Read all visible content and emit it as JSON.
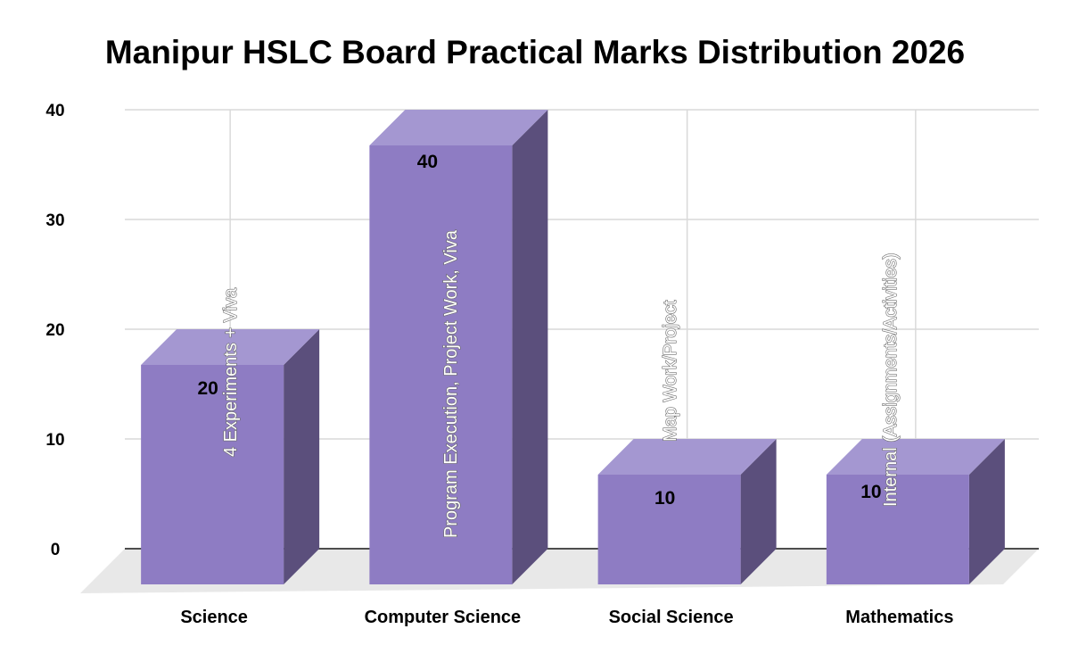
{
  "chart_data": {
    "type": "bar",
    "title": "Manipur HSLC Board Practical Marks Distribution 2026",
    "xlabel": "",
    "ylabel": "",
    "ylim": [
      0,
      40
    ],
    "yticks": [
      "0",
      "10",
      "20",
      "30",
      "40"
    ],
    "grid": true,
    "legend": "none",
    "three_d": true,
    "categories": [
      "Science",
      "Computer Science",
      "Social Science",
      "Mathematics"
    ],
    "values": [
      20,
      40,
      10,
      10
    ],
    "value_labels": [
      "20",
      "40",
      "10",
      "10"
    ],
    "annotations": [
      "4 Experiments + Viva",
      "Program Execution, Project Work, Viva",
      "Map Work/Project",
      "Internal (Assignments/Activities)"
    ],
    "colors": {
      "bar_front": "#8e7cc3",
      "bar_top": "#a497d1",
      "bar_side": "#5b4f7c",
      "floor": "#e8e8e8",
      "grid": "#d9d9d9",
      "axis": "#4d4d4d"
    }
  }
}
